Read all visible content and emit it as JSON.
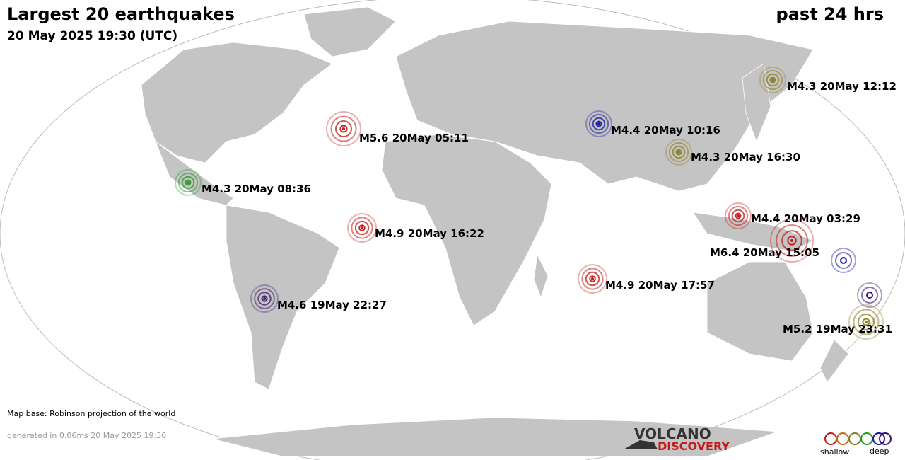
{
  "header": {
    "title": "Largest 20 earthquakes",
    "subtitle": "20 May 2025 19:30 (UTC)",
    "period": "past 24 hrs"
  },
  "quakes": [
    {
      "label": "M4.3 20May 12:12",
      "color": "#8a7d1e"
    },
    {
      "label": "M5.6 20May 05:11",
      "color": "#c41a1a"
    },
    {
      "label": "M4.4 20May 10:16",
      "color": "#1a1aa0"
    },
    {
      "label": "M4.3 20May 16:30",
      "color": "#8a7d1e"
    },
    {
      "label": "M4.3 20May 08:36",
      "color": "#2a9a2a"
    },
    {
      "label": "M4.4 20May 03:29",
      "color": "#c41a1a"
    },
    {
      "label": "M4.9 20May 16:22",
      "color": "#c41a1a"
    },
    {
      "label": "M6.4 20May 15:05",
      "color": "#c41a1a"
    },
    {
      "label": "M4.9 20May 17:57",
      "color": "#c41a1a"
    },
    {
      "label": "M4.6 19May 22:27",
      "color": "#3a1a70"
    },
    {
      "label": "M5.2 19May 23:31",
      "color": "#8a7d1e"
    }
  ],
  "footer": {
    "map_base": "Map base: Robinson projection of the world",
    "generated": "generated in 0.06ms 20 May 2025 19:30"
  },
  "logo": {
    "line1": "VOLCANO",
    "line2": "DISCOVERY"
  },
  "legend": {
    "shallow": "shallow",
    "deep": "deep"
  }
}
